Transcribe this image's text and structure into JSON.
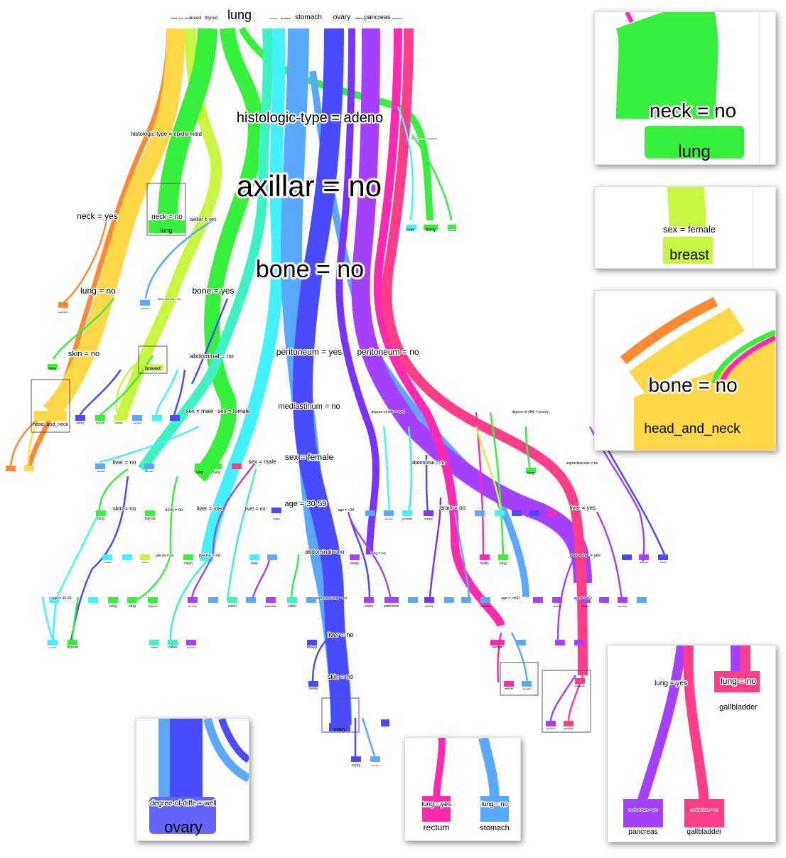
{
  "top_classes": [
    "head_and_neck",
    "breast",
    "thyroid",
    "lung",
    "salivary",
    "prostate",
    "stomach",
    "ovary",
    "kidney",
    "pancreas",
    "gallbladder",
    "colon"
  ],
  "split_labels": {
    "histologic_adeno": "histologic-type = adeno",
    "histologic_epidermoid": "histologic-type = epidermoid",
    "histologic_anaplastic": "histologic-type = anaplastic",
    "axillar_no": "axillar = no",
    "axillar_yes": "axillar = yes",
    "bone_no": "bone = no",
    "bone_yes": "bone = yes",
    "neck_yes": "neck = yes",
    "neck_no": "neck = no",
    "lung_no": "lung = no",
    "skin_no": "skin = no",
    "bone_marrow_no": "bone-marrow = no",
    "peritoneum_yes": "peritoneum = yes",
    "peritoneum_no": "peritoneum = no",
    "abdominal_no": "abdominal = no",
    "mediastinum_no": "mediastinum = no",
    "sex_male": "sex = male",
    "sex_female": "sex = female",
    "liver_no": "liver = no",
    "liver_yes": "liver = yes",
    "age_30_59": "age = 30-59",
    "skin_no2": "skin = no",
    "supraclavicular_no": "supraclavicular = no",
    "degree_well": "degree-of-diffe = well",
    "degree_poorly": "degree-of-diffe = poorly",
    "abdominal_yes": "abdominal = yes",
    "brain_no": "brain = no",
    "lung_yes": "lung = yes",
    "pleura_no": "pleura = no",
    "age_lt30": "age = <30",
    "age_gt60": "age = >=60"
  },
  "leaf_labels": {
    "lung": "lung",
    "breast": "breast",
    "head_and_neck": "head_and_neck",
    "stomach": "stomach",
    "ovary": "ovary",
    "kidney": "kidney",
    "thyroid": "thyroid",
    "prostate": "prostate",
    "colon": "colon",
    "pancreas": "pancreas",
    "testis": "testis",
    "rectum": "rectum",
    "gallbladder": "gallbladder",
    "liver": "liver",
    "esophagus": "esophagus",
    "duoden": "duoden"
  },
  "insets": {
    "neck": {
      "split": "neck = no",
      "leaf": "lung"
    },
    "breast": {
      "split": "sex = female",
      "leaf": "breast"
    },
    "head": {
      "split": "bone = no",
      "leaf": "head_and_neck"
    },
    "ovary": {
      "split": "degree-of-diffe = well",
      "leaf": "ovary"
    },
    "rectum": {
      "left_split": "lung = yes",
      "left_leaf": "rectum",
      "right_split": "lung = no",
      "right_leaf": "stomach"
    },
    "gall": {
      "split_top": "lung = yes",
      "right_split": "lung = no",
      "right_leaf": "gallbladder",
      "left_small": "mediastinum = yes",
      "left_leaf": "pancreas",
      "right_small": "mediastinum = no",
      "right_leaf2": "gallbladder"
    }
  },
  "colors": {
    "orange": "#ff8a33",
    "yellow": "#ffd84a",
    "lime": "#c7f542",
    "green": "#36f03b",
    "teal": "#3ff2c4",
    "cyan": "#44f2ff",
    "sky": "#5aa8ff",
    "blue": "#4a4aff",
    "violet": "#7a33ff",
    "purple": "#a642ff",
    "magenta": "#ff2ab0",
    "pink": "#ff3e8a"
  }
}
